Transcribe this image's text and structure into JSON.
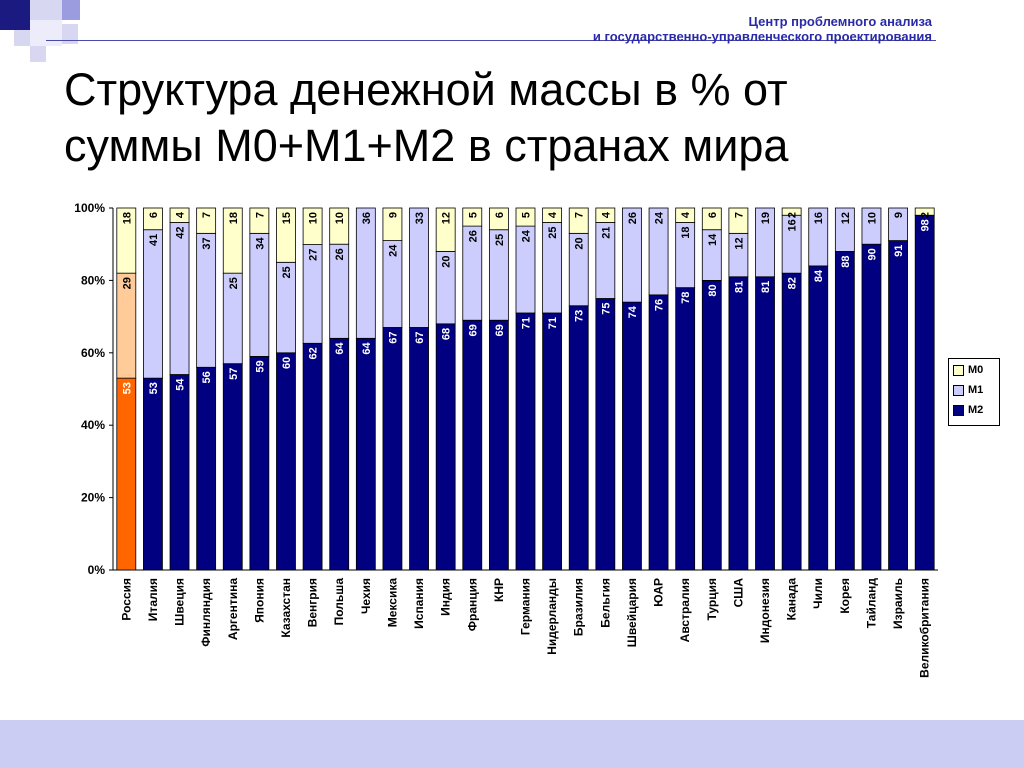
{
  "header": {
    "line1": "Центр проблемного анализа",
    "line2": "и государственно-управленческого проектирования"
  },
  "title": {
    "line1": "Структура денежной массы в % от",
    "line2": "суммы M0+M1+M2 в странах мира"
  },
  "colors": {
    "m2": "#000080",
    "m1": "#cccdfd",
    "m0": "#ffffcc",
    "russia_m2": "#ff6600",
    "russia_m1": "#ffcc99",
    "accent": "#2a2aa8",
    "band": "#cccdf3"
  },
  "chart_data": {
    "type": "bar",
    "stacked": true,
    "percent": true,
    "categories": [
      "Россия",
      "Италия",
      "Швеция",
      "Финляндия",
      "Аргентина",
      "Япония",
      "Казахстан",
      "Венгрия",
      "Польша",
      "Чехия",
      "Мексика",
      "Испания",
      "Индия",
      "Франция",
      "КНР",
      "Германия",
      "Нидерланды",
      "Бразилия",
      "Бельгия",
      "Швейцария",
      "ЮАР",
      "Австралия",
      "Турция",
      "США",
      "Индонезия",
      "Канада",
      "Чили",
      "Корея",
      "Тайланд",
      "Израиль",
      "Великобритания"
    ],
    "series": [
      {
        "name": "M2",
        "values": [
          53,
          53,
          54,
          56,
          57,
          59,
          60,
          62,
          64,
          64,
          67,
          67,
          68,
          69,
          69,
          71,
          71,
          73,
          75,
          74,
          76,
          78,
          80,
          81,
          81,
          82,
          84,
          88,
          90,
          91,
          98
        ]
      },
      {
        "name": "M1",
        "values": [
          29,
          41,
          42,
          37,
          25,
          34,
          25,
          27,
          26,
          36,
          24,
          33,
          20,
          26,
          25,
          24,
          25,
          20,
          21,
          26,
          24,
          18,
          14,
          12,
          19,
          16,
          16,
          12,
          10,
          9,
          null
        ]
      },
      {
        "name": "M0",
        "values": [
          18,
          6,
          4,
          7,
          18,
          7,
          15,
          10,
          10,
          null,
          9,
          null,
          12,
          5,
          6,
          5,
          4,
          7,
          4,
          null,
          null,
          4,
          6,
          7,
          null,
          2,
          null,
          null,
          null,
          null,
          2
        ]
      }
    ],
    "yticks": [
      "0%",
      "20%",
      "40%",
      "60%",
      "80%",
      "100%"
    ],
    "ylim": [
      0,
      100
    ],
    "legend": {
      "position": "right",
      "labels": [
        "M0",
        "M1",
        "M2"
      ]
    }
  }
}
